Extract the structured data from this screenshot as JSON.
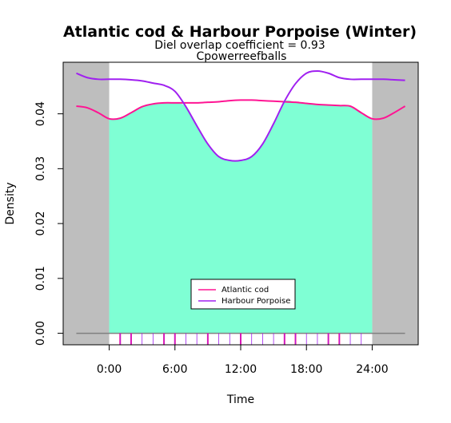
{
  "chart_data": {
    "type": "line",
    "title": "Atlantic cod & Harbour Porpoise (Winter)",
    "subtitle": "Diel overlap coefficient =  0.93",
    "subtitle2": "Cpowerreefballs",
    "xlabel": "Time",
    "ylabel": "Density",
    "xlim": [
      -4.2,
      28.2
    ],
    "ylim": [
      -0.0021,
      0.0494
    ],
    "x_ticks": [
      0,
      6,
      12,
      18,
      24
    ],
    "x_tick_labels": [
      "0:00",
      "6:00",
      "12:00",
      "18:00",
      "24:00"
    ],
    "y_ticks": [
      0,
      0.01,
      0.02,
      0.03,
      0.04
    ],
    "y_tick_labels": [
      "0.00",
      "0.01",
      "0.02",
      "0.03",
      "0.04"
    ],
    "night_regions": [
      [
        -4.2,
        0
      ],
      [
        24,
        28.2
      ]
    ],
    "overlap_fill_color": "#7fffd4",
    "night_color": "#bebebe",
    "grid": false,
    "legend_position": "bottom-center",
    "series": [
      {
        "name": "Atlantic cod",
        "color": "#ff1493",
        "x": [
          -3,
          -2,
          -1,
          0,
          1,
          2,
          3,
          4,
          5,
          6,
          7,
          8,
          9,
          10,
          11,
          12,
          13,
          14,
          15,
          16,
          17,
          18,
          19,
          20,
          21,
          22,
          23,
          24,
          25,
          26,
          27
        ],
        "y": [
          0.0414,
          0.0411,
          0.0402,
          0.0391,
          0.0392,
          0.0402,
          0.0413,
          0.0418,
          0.042,
          0.042,
          0.042,
          0.042,
          0.0421,
          0.0422,
          0.0424,
          0.0425,
          0.0425,
          0.0424,
          0.0423,
          0.0422,
          0.0421,
          0.0419,
          0.0417,
          0.0416,
          0.0415,
          0.0414,
          0.0402,
          0.0391,
          0.0392,
          0.0402,
          0.0414
        ]
      },
      {
        "name": "Harbour Porpoise",
        "color": "#a020f0",
        "x": [
          -3,
          -2,
          -1,
          0,
          1,
          2,
          3,
          4,
          5,
          6,
          7,
          8,
          9,
          10,
          11,
          12,
          13,
          14,
          15,
          16,
          17,
          18,
          19,
          20,
          21,
          22,
          23,
          24,
          25,
          26,
          27
        ],
        "y": [
          0.0474,
          0.0466,
          0.0463,
          0.0463,
          0.0463,
          0.0462,
          0.046,
          0.0456,
          0.0452,
          0.0441,
          0.0413,
          0.0378,
          0.0345,
          0.0322,
          0.0315,
          0.0315,
          0.0322,
          0.0345,
          0.0382,
          0.0423,
          0.0455,
          0.0474,
          0.0478,
          0.0474,
          0.0466,
          0.0463,
          0.0463,
          0.0463,
          0.0463,
          0.0462,
          0.0461
        ]
      }
    ],
    "rug_ticks": {
      "Atlantic cod": [
        1.0,
        2.0,
        5.0,
        6.0,
        9.0,
        12.0,
        16.0,
        17.0,
        20.0,
        21.0
      ],
      "Harbour Porpoise": [
        1.0,
        2.0,
        3.0,
        4.0,
        5.0,
        6.0,
        7.0,
        8.0,
        9.0,
        10.0,
        11.0,
        12.0,
        13.0,
        14.0,
        15.0,
        16.0,
        17.0,
        18.0,
        19.0,
        20.0,
        21.0,
        22.0,
        23.0
      ]
    }
  }
}
